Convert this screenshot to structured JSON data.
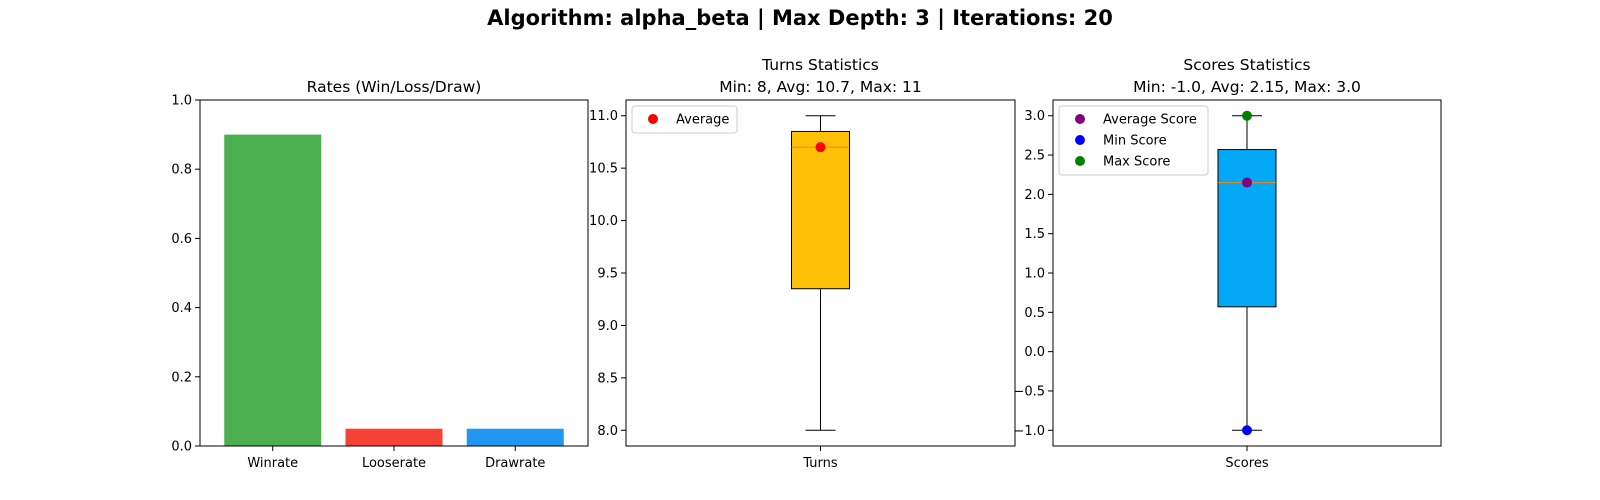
{
  "suptitle": "Algorithm: alpha_beta | Max Depth: 3 | Iterations: 20",
  "chart_data": [
    {
      "type": "bar",
      "title": "Rates (Win/Loss/Draw)",
      "categories": [
        "Winrate",
        "Looserate",
        "Drawrate"
      ],
      "values": [
        0.9,
        0.05,
        0.05
      ],
      "colors": [
        "#4caf50",
        "#f44336",
        "#2196f3"
      ],
      "ylim": [
        0,
        1.0
      ],
      "yticks": [
        "0.0",
        "0.2",
        "0.4",
        "0.6",
        "0.8",
        "1.0"
      ],
      "grid": false
    },
    {
      "type": "box",
      "title_line1": "Turns Statistics",
      "title_line2": "Min: 8, Avg: 10.7, Max: 11",
      "category": "Turns",
      "box_color": "#ffc107",
      "whisker_low": 8,
      "q1": 9.35,
      "median": 10.7,
      "q3": 10.85,
      "whisker_high": 11,
      "ylim": [
        7.85,
        11.15
      ],
      "yticks": [
        "8.0",
        "8.5",
        "9.0",
        "9.5",
        "10.0",
        "10.5",
        "11.0"
      ],
      "markers": [
        {
          "name": "Average",
          "value": 10.7,
          "color": "#ff0000"
        }
      ],
      "legend": "top-left",
      "grid": false
    },
    {
      "type": "box",
      "title_line1": "Scores Statistics",
      "title_line2": "Min: -1.0, Avg: 2.15, Max: 3.0",
      "category": "Scores",
      "box_color": "#03a9f4",
      "whisker_low": -1.0,
      "q1": 0.57,
      "median": 2.15,
      "q3": 2.57,
      "whisker_high": 3.0,
      "ylim": [
        -1.2,
        3.2
      ],
      "yticks": [
        "−1.0",
        "−0.5",
        "0.0",
        "0.5",
        "1.0",
        "1.5",
        "2.0",
        "2.5",
        "3.0"
      ],
      "markers": [
        {
          "name": "Average Score",
          "value": 2.15,
          "color": "#800080"
        },
        {
          "name": "Min Score",
          "value": -1.0,
          "color": "#0000ff"
        },
        {
          "name": "Max Score",
          "value": 3.0,
          "color": "#008000"
        }
      ],
      "legend": "top-left",
      "grid": false
    }
  ]
}
